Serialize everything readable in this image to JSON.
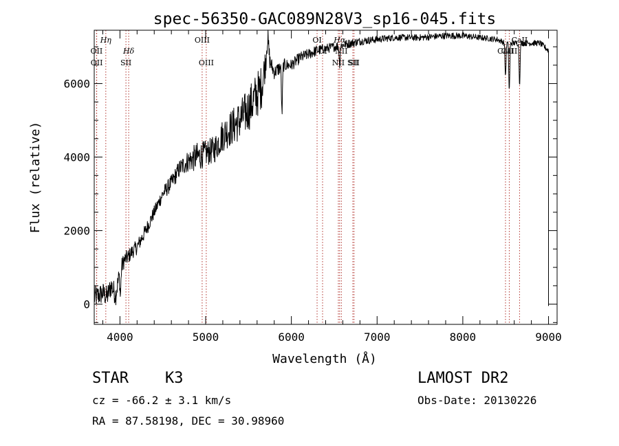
{
  "chart_data": {
    "type": "line",
    "title": "spec-56350-GAC089N28V3_sp16-045.fits",
    "xlabel": "Wavelength (Å)",
    "ylabel": "Flux (relative)",
    "xlim": [
      3700,
      9100
    ],
    "ylim": [
      -550,
      7450
    ],
    "x_ticks": [
      4000,
      5000,
      6000,
      7000,
      8000,
      9000
    ],
    "y_ticks": [
      0,
      2000,
      4000,
      6000
    ],
    "grid": false,
    "series": [
      {
        "x": [
          3700,
          3760,
          3800,
          3850,
          3900,
          3950,
          4000,
          4050,
          4100,
          4150,
          4200,
          4300,
          4400,
          4500,
          4600,
          4700,
          4800,
          4900,
          5000,
          5100,
          5200,
          5300,
          5400,
          5500,
          5600,
          5650,
          5700,
          5720,
          5750,
          5800,
          5850,
          5900,
          6000,
          6100,
          6200,
          6300,
          6400,
          6500,
          6600,
          6700,
          6800,
          7000,
          7200,
          7500,
          7800,
          8000,
          8200,
          8400,
          8500,
          8600,
          8700,
          8800,
          8900,
          9000
        ],
        "y": [
          180,
          250,
          300,
          200,
          500,
          250,
          900,
          1200,
          1300,
          1450,
          1550,
          2000,
          2500,
          3000,
          3300,
          3700,
          3900,
          4000,
          4100,
          4200,
          4600,
          4800,
          5000,
          5300,
          5700,
          5900,
          6600,
          7300,
          6600,
          6300,
          6400,
          6500,
          6500,
          6700,
          6800,
          6900,
          6950,
          7000,
          7050,
          7100,
          7150,
          7200,
          7250,
          7250,
          7300,
          7300,
          7250,
          7200,
          7100,
          7100,
          7100,
          7100,
          7100,
          6900
        ],
        "noise": [
          300,
          300,
          300,
          300,
          300,
          300,
          250,
          220,
          200,
          200,
          200,
          200,
          180,
          200,
          220,
          250,
          300,
          400,
          350,
          380,
          450,
          500,
          560,
          600,
          650,
          600,
          400,
          400,
          250,
          180,
          200,
          180,
          160,
          160,
          150,
          150,
          130,
          130,
          120,
          120,
          110,
          100,
          90,
          90,
          90,
          90,
          80,
          80,
          80,
          80,
          80,
          80,
          80,
          80
        ],
        "dips": [
          {
            "x": 4005,
            "depth": 700
          },
          {
            "x": 5890,
            "depth": 1300
          },
          {
            "x": 6563,
            "depth": 500
          },
          {
            "x": 8498,
            "depth": 900
          },
          {
            "x": 8542,
            "depth": 1300
          },
          {
            "x": 8662,
            "depth": 1100
          }
        ]
      }
    ],
    "lines": [
      {
        "label": "Hη",
        "wave": 3835,
        "row": 1,
        "italic": true
      },
      {
        "label": "OII",
        "wave": 3727,
        "row": 2
      },
      {
        "label": "OII",
        "wave": 3729,
        "row": 3
      },
      {
        "label": "Hδ",
        "wave": 4102,
        "row": 2,
        "italic": true
      },
      {
        "label": "SII",
        "wave": 4070,
        "row": 3
      },
      {
        "label": "OIII",
        "wave": 4959,
        "row": 1
      },
      {
        "label": "OIII",
        "wave": 5007,
        "row": 3
      },
      {
        "label": "OI",
        "wave": 6300,
        "row": 1
      },
      {
        "label": "OI",
        "wave": 6364,
        "row": 2
      },
      {
        "label": "Hα",
        "wave": 6563,
        "row": 1,
        "italic": true
      },
      {
        "label": "NII",
        "wave": 6583,
        "row": 2
      },
      {
        "label": "NII",
        "wave": 6548,
        "row": 3
      },
      {
        "label": "SII",
        "wave": 6717,
        "row": 3
      },
      {
        "label": "SII",
        "wave": 6731,
        "row": 3
      },
      {
        "label": "CaII",
        "wave": 8662,
        "row": 1
      },
      {
        "label": "CaII",
        "wave": 8542,
        "row": 2
      },
      {
        "label": "CaII",
        "wave": 8498,
        "row": 2
      }
    ]
  },
  "info": {
    "class_label": "STAR",
    "subclass": "K3",
    "survey": "LAMOST DR2",
    "cz_text": "cz = -66.2 ± 3.1 km/s",
    "obs_date_text": "Obs-Date: 20130226",
    "radec_text": "RA =  87.58198, DEC =  30.98960"
  }
}
